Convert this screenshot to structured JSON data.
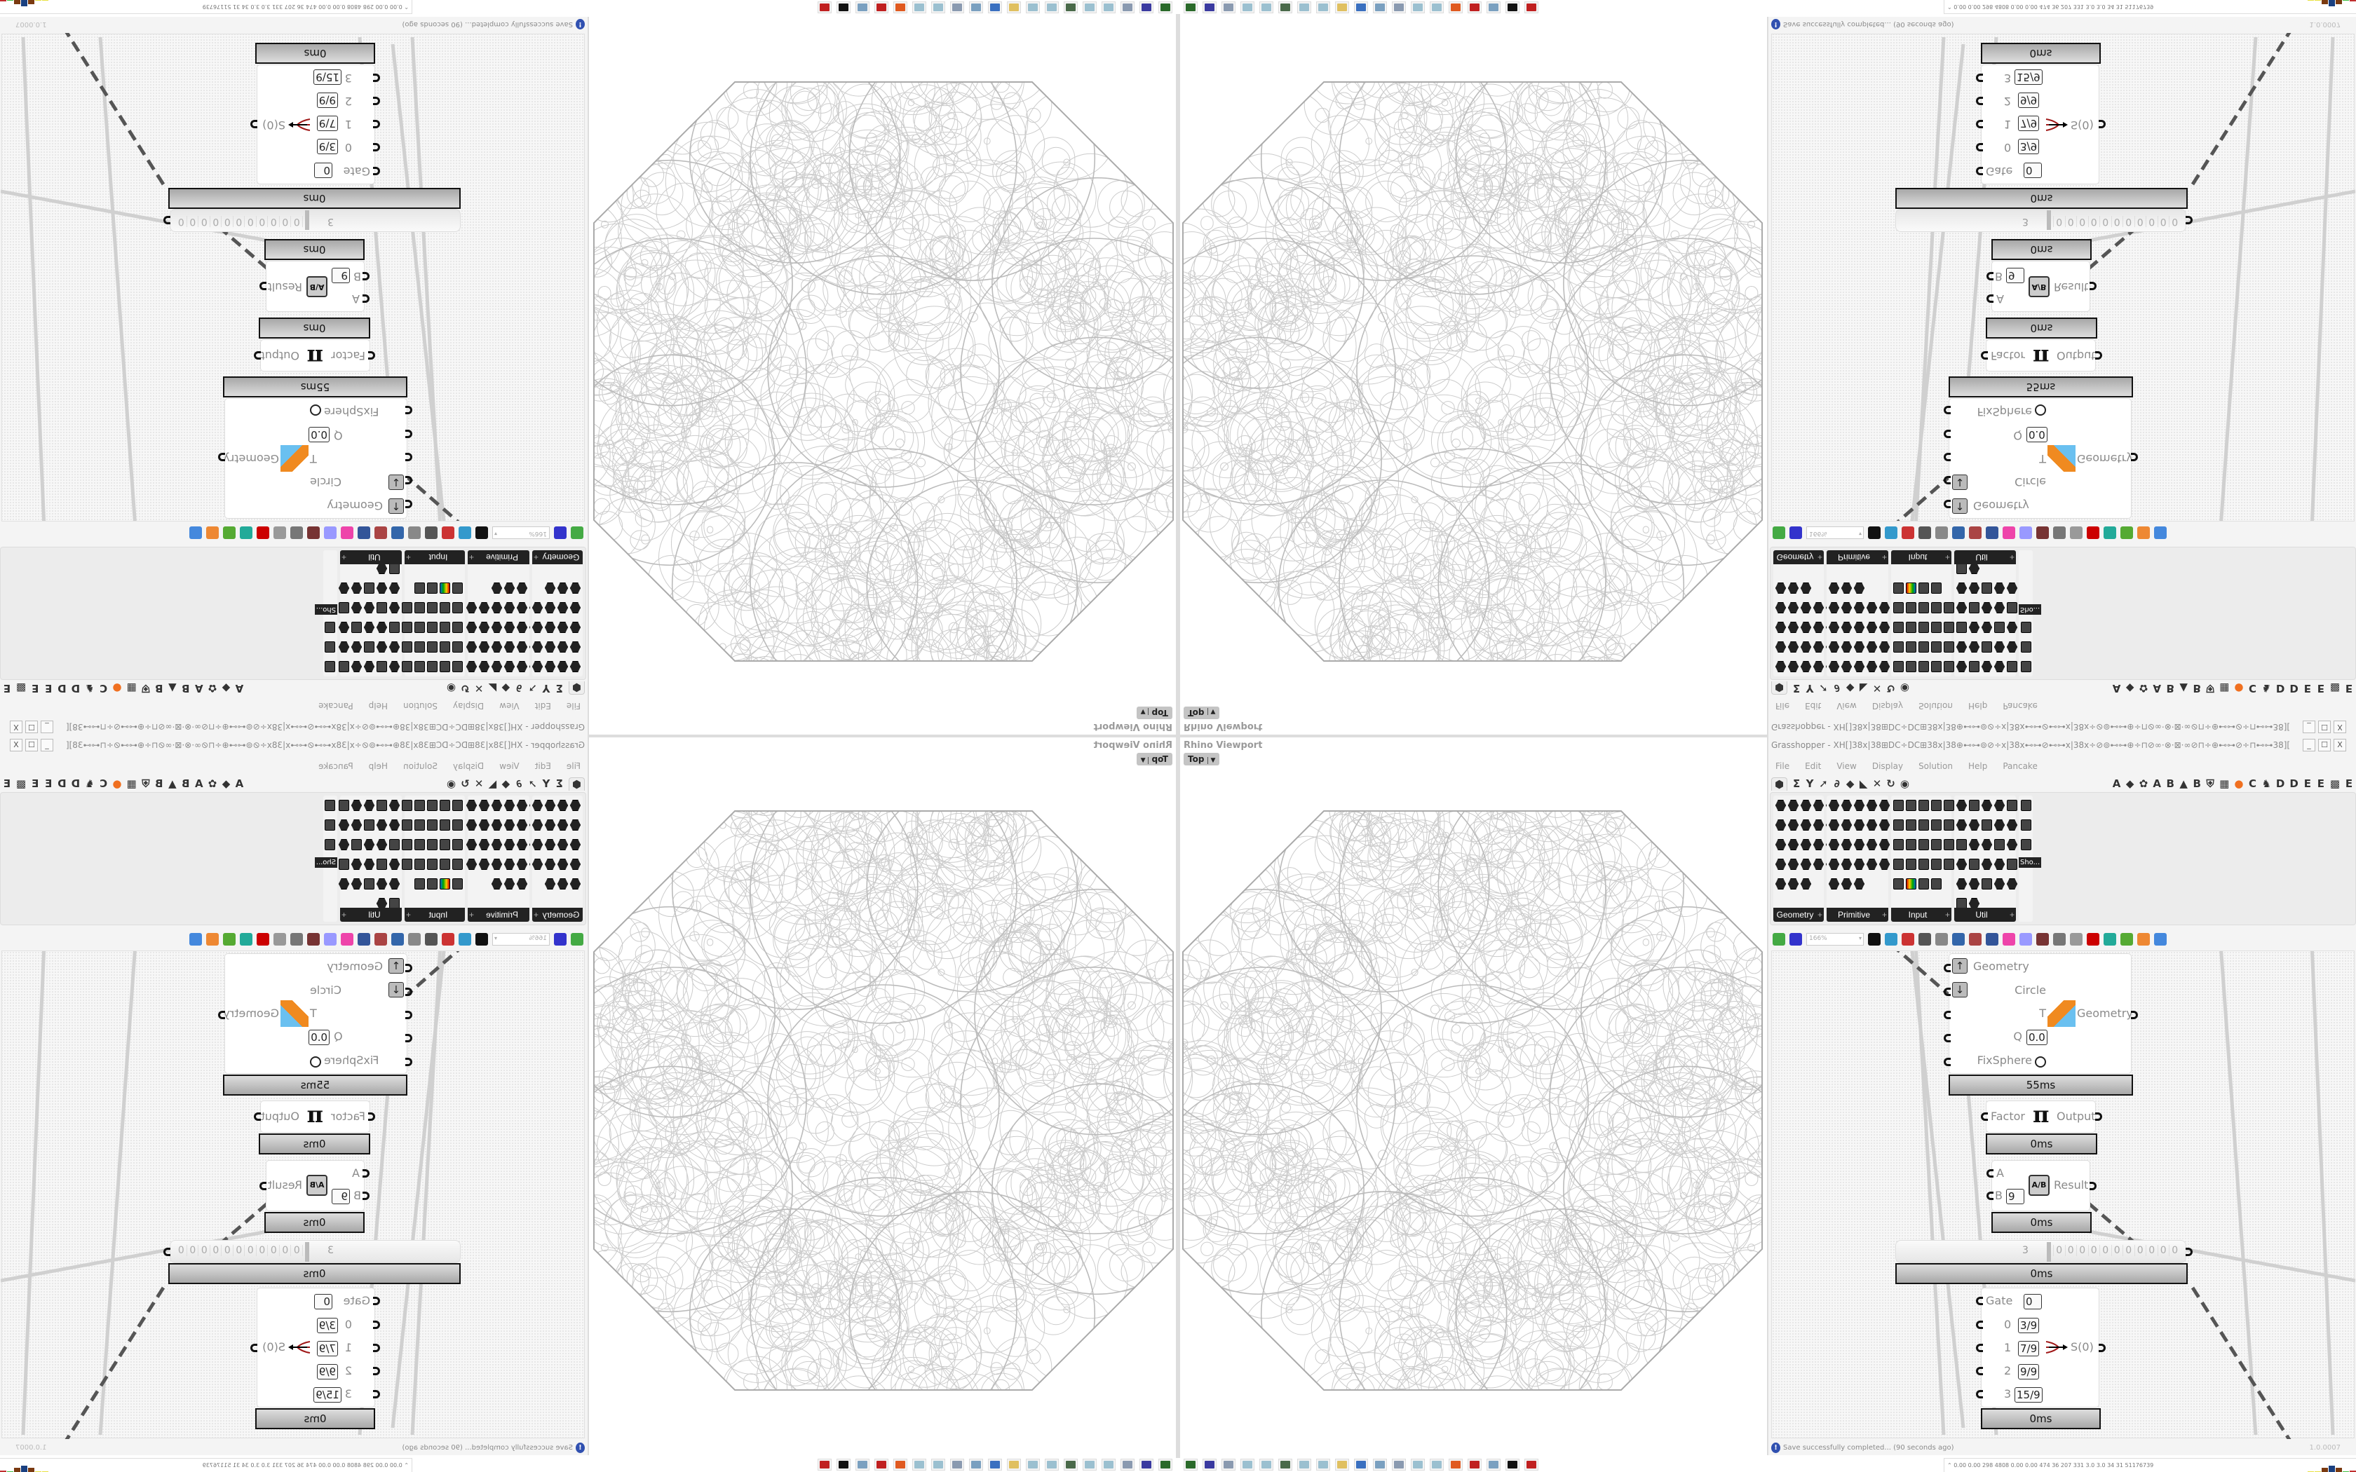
{
  "viewport": {
    "label": "Rhino Viewport",
    "view": "Top",
    "caret": "▼"
  },
  "grasshopper": {
    "title": "Grasshopper - XH[]38x|38⊞DC÷DC⊞38x|38⊕⊷⊶⊚⊘÷x|38x⊷⊶⊘⊷⊶x|38x÷⊘⊚⊷⊶⊕÷⊓⊘∞·⊗·⊠·∞⊘⊓÷⊕⊷⊶⊘÷⊓⊷⊶38][38⊷⊶⊓÷⊘⊷⊶⊕÷⊓⊘∞·⊗·⊠·∞⊘⊓÷⊕⊷⊶⊚⊘÷x|38x⊷⊶⊘...",
    "window_buttons": [
      "_",
      "☐",
      "X"
    ],
    "menu": [
      "File",
      "Edit",
      "View",
      "Display",
      "Solution",
      "Help",
      "Pancake"
    ],
    "tabs": [
      {
        "label": "⬢",
        "icon": "params-icon",
        "active": true
      },
      {
        "label": "Σ",
        "icon": "maths-icon"
      },
      {
        "label": "Y",
        "icon": "sets-icon"
      },
      {
        "label": "➚",
        "icon": "vector-icon"
      },
      {
        "label": "∂",
        "icon": "curve-icon"
      },
      {
        "label": "◆",
        "icon": "surface-icon"
      },
      {
        "label": "◣",
        "icon": "mesh-icon"
      },
      {
        "label": "✕",
        "icon": "intersect-icon"
      },
      {
        "label": "↻",
        "icon": "transform-icon"
      },
      {
        "label": "◉",
        "icon": "display-icon"
      },
      {
        "label": "",
        "icon": "spacer"
      },
      {
        "label": "A",
        "icon": "tab-a"
      },
      {
        "label": "◆",
        "icon": "crystal-icon"
      },
      {
        "label": "✿",
        "icon": "brain-icon"
      },
      {
        "label": "A",
        "icon": "tab-a2"
      },
      {
        "label": "B",
        "icon": "tab-b"
      },
      {
        "label": "▲",
        "icon": "mountain-icon"
      },
      {
        "label": "B",
        "icon": "tab-b2"
      },
      {
        "label": "⛨",
        "icon": "shield-icon"
      },
      {
        "label": "▦",
        "icon": "grid-icon"
      },
      {
        "label": "●",
        "icon": "orange-circle-icon"
      },
      {
        "label": "C",
        "icon": "tab-c"
      },
      {
        "label": "♞",
        "icon": "rooster-icon"
      },
      {
        "label": "D",
        "icon": "tab-d"
      },
      {
        "label": "D",
        "icon": "tab-d2"
      },
      {
        "label": "E",
        "icon": "tab-e"
      },
      {
        "label": "E",
        "icon": "tab-e2"
      },
      {
        "label": "▩",
        "icon": "dotted-square-icon"
      },
      {
        "label": "E",
        "icon": "tab-e3"
      }
    ],
    "ribbon_groups": [
      {
        "label": "Geometry",
        "plus": "+",
        "icons": 23,
        "kind": "hex"
      },
      {
        "label": "Primitive",
        "plus": "+",
        "icons": 23,
        "kind": "hex"
      },
      {
        "label": "Input",
        "plus": "+",
        "icons": 24,
        "kind": "sq"
      },
      {
        "label": "Util",
        "plus": "+",
        "icons": 27,
        "kind": "mix"
      },
      {
        "label": "Sho...",
        "plus": "",
        "icons": 3,
        "kind": "sq"
      }
    ],
    "toolbar": {
      "zoom": "166%",
      "icons": [
        "open-file-icon",
        "save-file-icon",
        "zoom-extents-icon",
        "preview-eye-icon",
        "sketch-pen-icon",
        "bake-icon",
        "email-icon",
        "gha-icon",
        "export-image-icon",
        "search-icon",
        "package-icon",
        "bulb-icon",
        "wire-icon",
        "preview-off-icon",
        "wireframe-icon",
        "shaded-icon",
        "teal-shape-icon",
        "green-shape-icon",
        "orange-sphere-icon",
        "blue-sphere-icon"
      ]
    },
    "nodes": {
      "kangaroo": {
        "inputs": [
          "Geometry",
          "Circle",
          "T",
          "Q",
          "FixSphere"
        ],
        "q_value": "0.0",
        "output": "Geometry",
        "time": "55ms"
      },
      "pi": {
        "input": "Factor",
        "symbol": "π",
        "output": "Output",
        "time": "0ms"
      },
      "division": {
        "input_a": "A",
        "input_b": "B",
        "b_value": "9",
        "symbol": "A/B",
        "output": "Result",
        "time": "0ms"
      },
      "slider": {
        "value": "3",
        "digits": [
          "0",
          "0",
          "0",
          "0",
          "0",
          "0",
          "0",
          "0",
          "0",
          "0",
          "0"
        ],
        "time": "0ms"
      },
      "gate": {
        "gate_label": "Gate",
        "gate_value": "0",
        "rows": [
          {
            "index": "0",
            "value": "3/9"
          },
          {
            "index": "1",
            "value": "7/9"
          },
          {
            "index": "2",
            "value": "9/9"
          },
          {
            "index": "3",
            "value": "15/9"
          }
        ],
        "output": "S(0)",
        "time": "0ms"
      }
    },
    "status": {
      "message": "Save successfully completed... (90 seconds ago)",
      "version": "1.0.0007"
    }
  },
  "system": {
    "readout": "0.00 0.00 298 4808 0.00 0.00 474 36 207 331 3.0 3.0 34 31 51176739",
    "taskbar": [
      {
        "name": "terminal-icon",
        "color": "#2a6a2a"
      },
      {
        "name": "floppy-64-icon",
        "color": "#3a3aa0"
      },
      {
        "name": "script-icon",
        "color": "#8a9ab0"
      },
      {
        "name": "notepad-icon",
        "color": "#9bc0d0"
      },
      {
        "name": "notepad-icon",
        "color": "#9bc0d0"
      },
      {
        "name": "monitor-icon",
        "color": "#4a6a4a"
      },
      {
        "name": "notepad-icon",
        "color": "#9bc0d0"
      },
      {
        "name": "notepad-icon",
        "color": "#9bc0d0"
      },
      {
        "name": "folder-icon",
        "color": "#e0c060"
      },
      {
        "name": "control-panel-icon",
        "color": "#3a70c0"
      },
      {
        "name": "calculator-icon",
        "color": "#7aa0c0"
      },
      {
        "name": "script-icon",
        "color": "#8a9ab0"
      },
      {
        "name": "notepad-icon",
        "color": "#9bc0d0"
      },
      {
        "name": "notepad-icon",
        "color": "#9bc0d0"
      },
      {
        "name": "firefox-icon",
        "color": "#e05a20"
      },
      {
        "name": "red-bug-icon",
        "color": "#c02020"
      },
      {
        "name": "calculator-icon",
        "color": "#7aa0c0"
      },
      {
        "name": "rhino-icon",
        "color": "#111111"
      },
      {
        "name": "red-bug-icon",
        "color": "#c02020"
      }
    ],
    "tray_bars": [
      "#e8e040",
      "#e8e040",
      "#7a3a10",
      "#1a4080",
      "#7a3a10",
      "#40c040",
      "#c03030"
    ]
  },
  "colors": {
    "geometry_stroke": "#cccccc",
    "octagon_stroke": "#aaaaaa",
    "accent": "#f07020"
  }
}
